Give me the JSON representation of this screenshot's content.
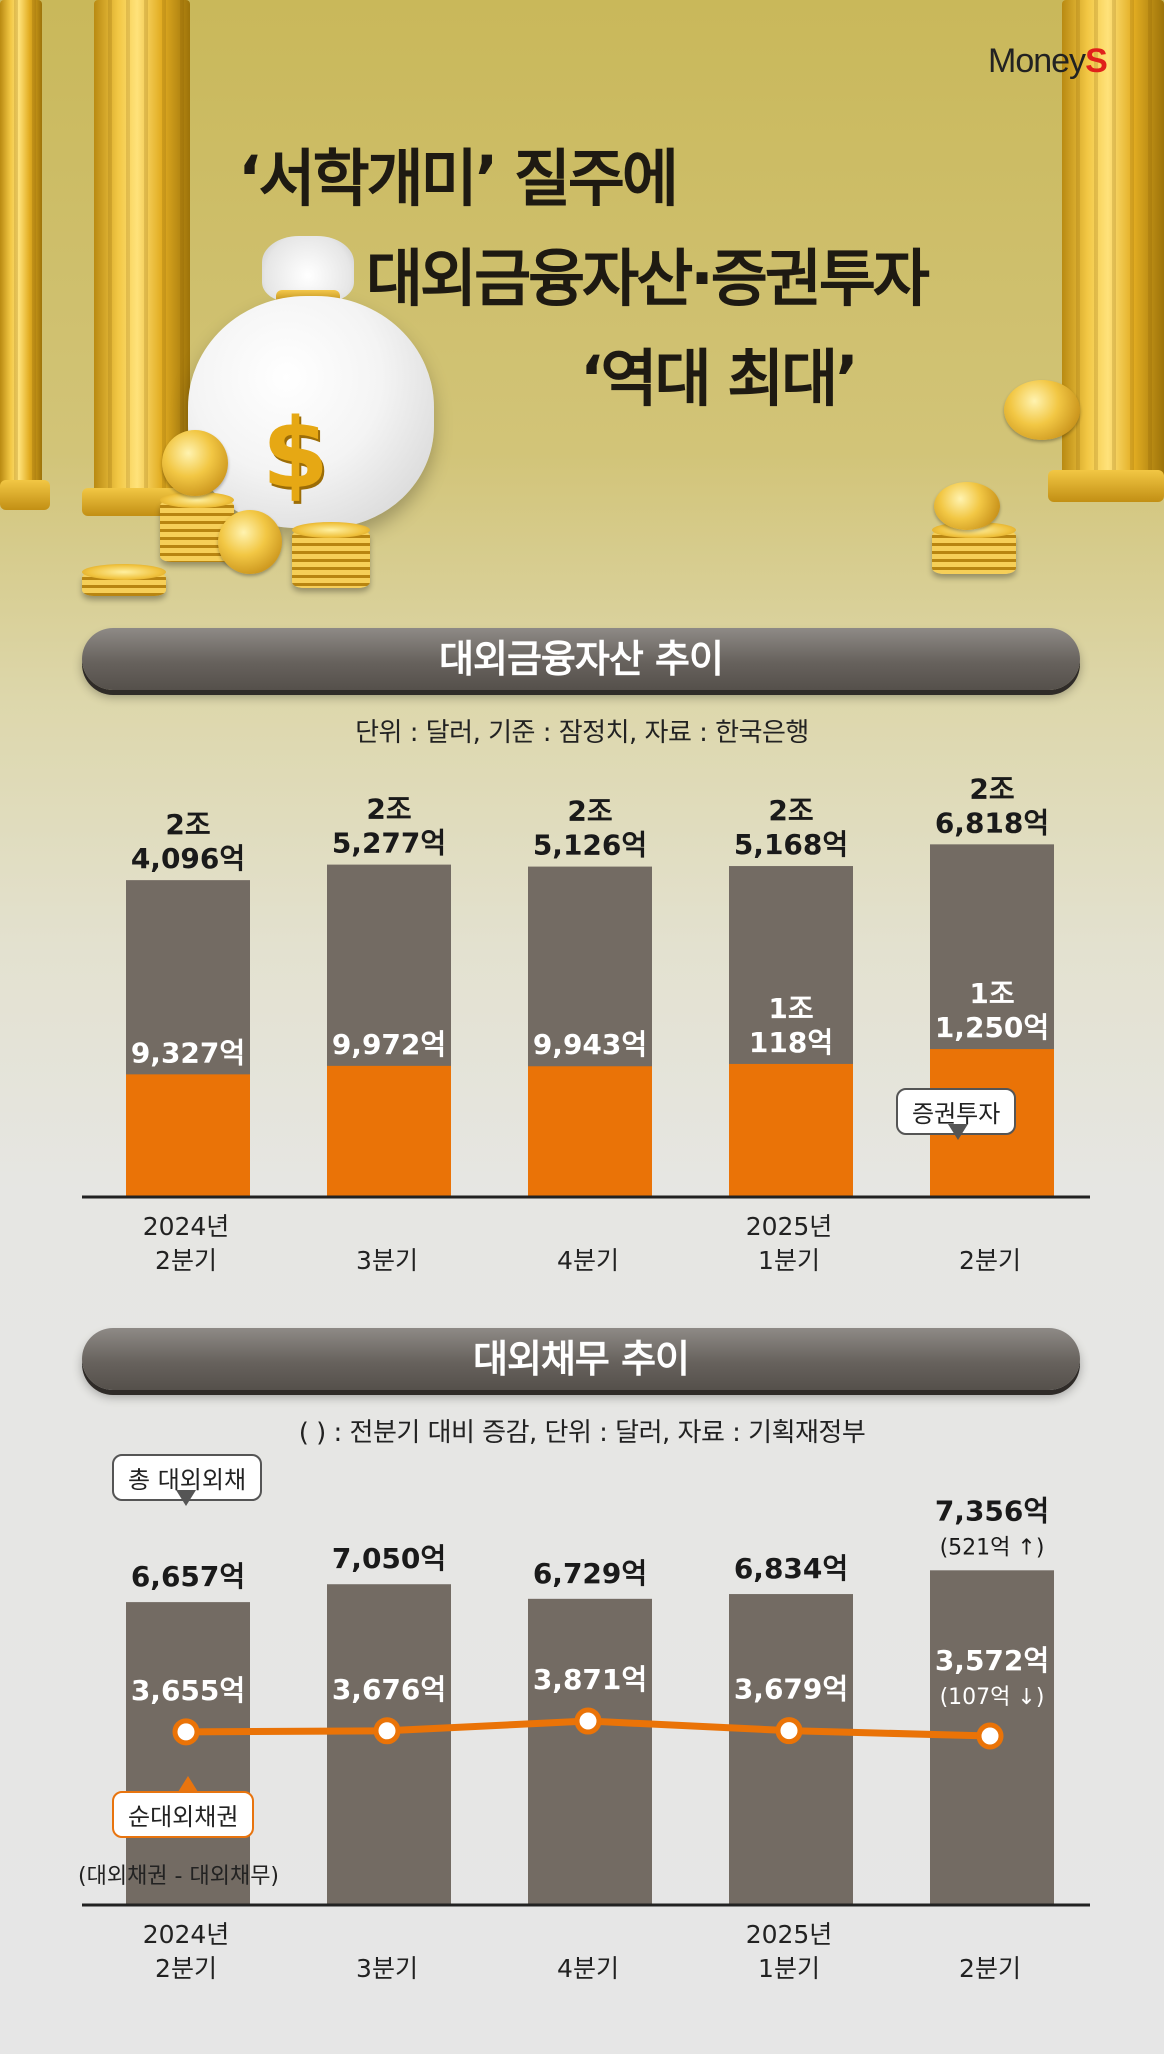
{
  "brand": {
    "prefix": "Money",
    "suffix": "S"
  },
  "headline": {
    "line1": "‘서학개미’ 질주에",
    "line2": "대외금융자산·증권투자",
    "line3": "‘역대 최대’"
  },
  "colors": {
    "total_bar": "#736b63",
    "sub_bar": "#ea7307",
    "line": "#ea7307"
  },
  "icons": [
    "money-bag-icon",
    "dollar-icon",
    "gold-coin-icon"
  ],
  "section1": {
    "title": "대외금융자산 추이",
    "subtitle": "단위 : 달러, 기준 : 잠정치, 자료 : 한국은행",
    "callout": "증권투자"
  },
  "section2": {
    "title": "대외채무 추이",
    "subtitle": "(   ) : 전분기 대비 증감, 단위 : 달러, 자료 : 기획재정부",
    "callout_total": "총 대외외채",
    "callout_net": "순대외채권",
    "callout_net_note": "(대외채권 - 대외채무)"
  },
  "chart_data": [
    {
      "type": "bar",
      "title": "대외금융자산 추이",
      "unit": "억 달러",
      "categories": [
        [
          "2024년",
          "2분기"
        ],
        [
          "3분기"
        ],
        [
          "4분기"
        ],
        [
          "2025년",
          "1분기"
        ],
        [
          "2분기"
        ]
      ],
      "series": [
        {
          "name": "대외금융자산",
          "values": [
            24096,
            25277,
            25126,
            25168,
            26818
          ],
          "labels": [
            [
              "2조",
              "4,096억"
            ],
            [
              "2조",
              "5,277억"
            ],
            [
              "2조",
              "5,126억"
            ],
            [
              "2조",
              "5,168억"
            ],
            [
              "2조",
              "6,818억"
            ]
          ]
        },
        {
          "name": "증권투자",
          "values": [
            9327,
            9972,
            9943,
            10118,
            11250
          ],
          "labels": [
            [
              "9,327억"
            ],
            [
              "9,972억"
            ],
            [
              "9,943억"
            ],
            [
              "1조",
              "118억"
            ],
            [
              "1조",
              "1,250억"
            ]
          ]
        }
      ]
    },
    {
      "type": "bar+line",
      "title": "대외채무 추이",
      "unit": "억 달러",
      "categories": [
        [
          "2024년",
          "2분기"
        ],
        [
          "3분기"
        ],
        [
          "4분기"
        ],
        [
          "2025년",
          "1분기"
        ],
        [
          "2분기"
        ]
      ],
      "series": [
        {
          "name": "총 대외외채",
          "type": "bar",
          "values": [
            6657,
            7050,
            6729,
            6834,
            7356
          ],
          "labels": [
            [
              "6,657억"
            ],
            [
              "7,050억"
            ],
            [
              "6,729억"
            ],
            [
              "6,834억"
            ],
            [
              "7,356억",
              "(521억 ↑)"
            ]
          ]
        },
        {
          "name": "순대외채권",
          "type": "line",
          "values": [
            3655,
            3676,
            3871,
            3679,
            3572
          ],
          "labels": [
            [
              "3,655억"
            ],
            [
              "3,676억"
            ],
            [
              "3,871억"
            ],
            [
              "3,679억"
            ],
            [
              "3,572억",
              "(107억 ↓)"
            ]
          ]
        }
      ]
    }
  ]
}
